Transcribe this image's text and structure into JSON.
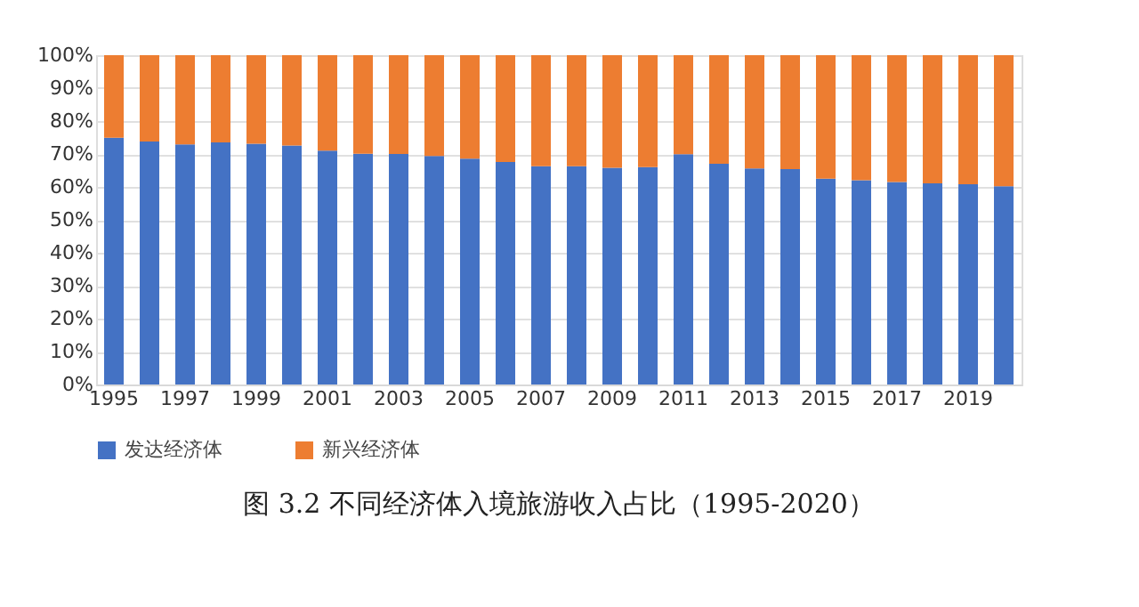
{
  "chart_data": {
    "type": "bar",
    "stacked": true,
    "title": "图 3.2 不同经济体入境旅游收入占比（1995-2020）",
    "categories": [
      "1995",
      null,
      "1997",
      null,
      "1999",
      null,
      "2001",
      null,
      "2003",
      null,
      "2005",
      null,
      "2007",
      null,
      "2009",
      null,
      "2011",
      null,
      "2013",
      null,
      "2015",
      null,
      "2017",
      null,
      "2019",
      null
    ],
    "series": [
      {
        "name": "发达经济体",
        "color": "#4472c4",
        "values": [
          74.9,
          73.8,
          72.9,
          73.5,
          73.1,
          72.6,
          71.0,
          70.1,
          70.0,
          69.4,
          68.6,
          67.6,
          66.3,
          66.3,
          65.8,
          66.0,
          69.9,
          67.0,
          65.6,
          65.4,
          62.5,
          62.0,
          61.5,
          61.1,
          60.8,
          60.2
        ]
      },
      {
        "name": "新兴经济体",
        "color": "#ed7d31",
        "values": [
          25.1,
          26.2,
          27.1,
          26.5,
          26.9,
          27.4,
          29.0,
          29.9,
          30.0,
          30.6,
          31.4,
          32.4,
          33.7,
          33.7,
          34.2,
          34.0,
          30.1,
          33.0,
          34.4,
          34.6,
          37.5,
          38.0,
          38.5,
          38.9,
          39.2,
          39.8
        ]
      }
    ],
    "ylim": [
      0,
      100
    ],
    "yticks": [
      {
        "value": 0,
        "label": "0%"
      },
      {
        "value": 10,
        "label": "10%"
      },
      {
        "value": 20,
        "label": "20%"
      },
      {
        "value": 30,
        "label": "30%"
      },
      {
        "value": 40,
        "label": "40%"
      },
      {
        "value": 50,
        "label": "50%"
      },
      {
        "value": 60,
        "label": "60%"
      },
      {
        "value": 70,
        "label": "70%"
      },
      {
        "value": 80,
        "label": "80%"
      },
      {
        "value": 90,
        "label": "90%"
      },
      {
        "value": 100,
        "label": "100%"
      }
    ],
    "grid": "y",
    "legend": "bottom"
  }
}
